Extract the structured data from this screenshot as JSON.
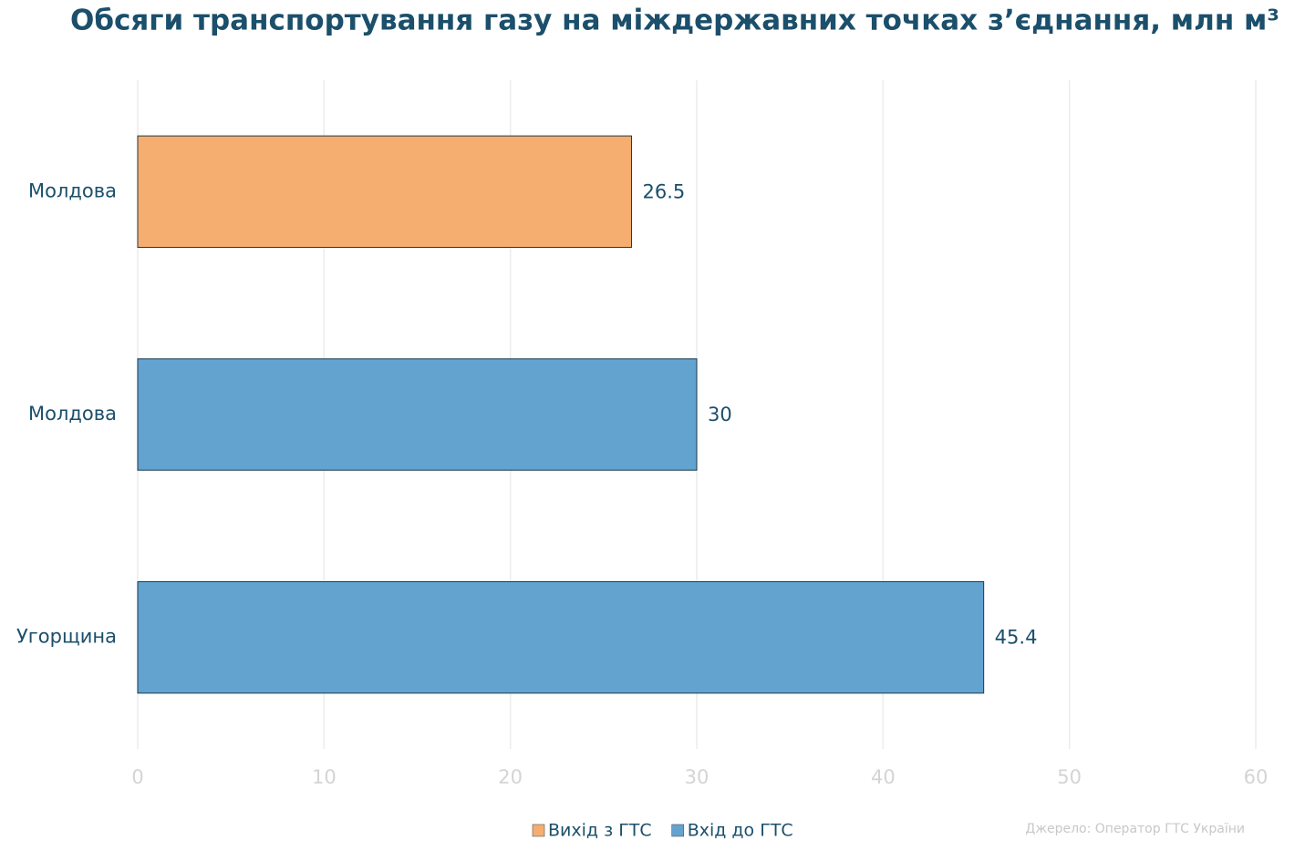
{
  "chart_data": {
    "type": "bar",
    "orientation": "horizontal",
    "title": "Обсяги транспортування газу на міждержавних точках з’єднання, млн м³",
    "categories": [
      "Молдова",
      "Молдова",
      "Угорщина"
    ],
    "series": [
      {
        "name": "Вихід з ГТС",
        "color": "#f6ae70",
        "values": [
          26.5,
          null,
          null
        ]
      },
      {
        "name": "Вхід до ГТС",
        "color": "#63a3d0",
        "values": [
          null,
          30,
          45.4
        ]
      }
    ],
    "xlim": [
      0,
      60
    ],
    "xticks": [
      0,
      10,
      20,
      30,
      40,
      50,
      60
    ],
    "grid": true,
    "legend": "bottom",
    "source": "Джерело: Оператор ГТС України"
  }
}
